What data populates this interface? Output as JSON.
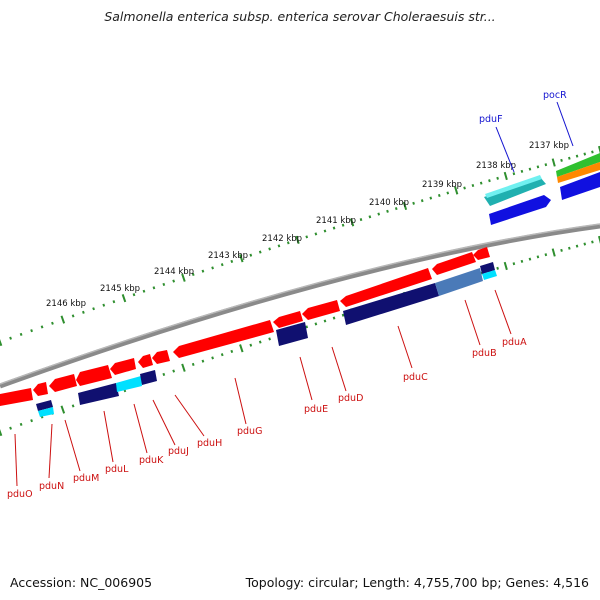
{
  "title": "Salmonella enterica subsp. enterica serovar Choleraesuis str...",
  "footer": {
    "accession": "Accession: NC_006905",
    "stats": "Topology: circular; Length: 4,755,700 bp; Genes: 4,516"
  },
  "colors": {
    "backbone": "#8a8a8a",
    "tick": "#2f8f2f",
    "forward_label": "#1515d0",
    "reverse_label": "#cc1010",
    "reverse_gene": "#ff0000",
    "cds_dark": "#101070",
    "cds_cyan": "#00e0ff",
    "fwd_teal": "#20b0b0",
    "fwd_blue": "#1010e0",
    "fwd_green": "#30c030",
    "fwd_orange": "#ff8800"
  },
  "scale_labels": [
    "2146 kbp",
    "2145 kbp",
    "2144 kbp",
    "2143 kbp",
    "2142 kbp",
    "2141 kbp",
    "2140 kbp",
    "2139 kbp",
    "2138 kbp",
    "2137 kbp"
  ],
  "forward_genes": [
    "pduF",
    "pocR"
  ],
  "reverse_genes": [
    "pduO",
    "pduN",
    "pduM",
    "pduL",
    "pduK",
    "pduJ",
    "pduH",
    "pduG",
    "pduE",
    "pduD",
    "pduC",
    "pduB",
    "pduA"
  ]
}
